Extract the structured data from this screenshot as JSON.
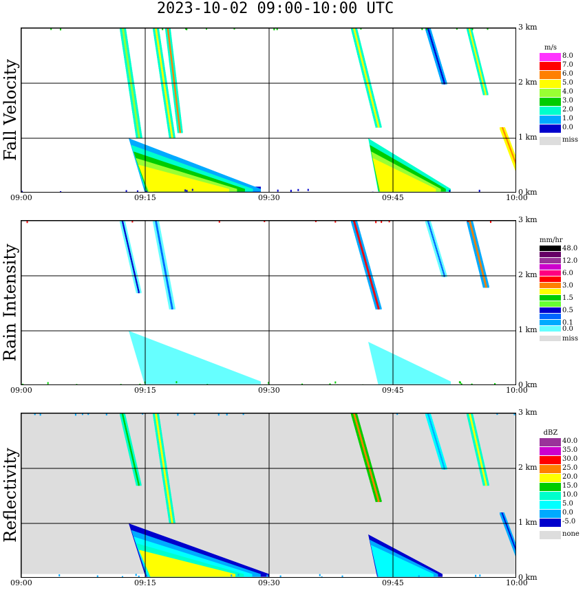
{
  "title": "2023-10-02   09:00-10:00 UTC",
  "chart_data": [
    {
      "type": "heatmap",
      "name": "Fall Velocity",
      "title": "Fall Velocity",
      "x_ticks": [
        "09:00",
        "09:15",
        "09:30",
        "09:45",
        "10:00"
      ],
      "xlim": [
        "09:00",
        "10:00"
      ],
      "y_ticks": [
        "0 km",
        "1 km",
        "2 km",
        "3 km"
      ],
      "ylim": [
        0,
        3.0
      ],
      "grid": true,
      "background": "#ffffff",
      "legend_unit": "m/s",
      "legend": [
        {
          "label": "8.0",
          "color": "#ff33ff"
        },
        {
          "label": "7.0",
          "color": "#ff0000"
        },
        {
          "label": "6.0",
          "color": "#ff8000"
        },
        {
          "label": "5.0",
          "color": "#ffff00"
        },
        {
          "label": "4.0",
          "color": "#99ff33"
        },
        {
          "label": "3.0",
          "color": "#00cc00"
        },
        {
          "label": "2.0",
          "color": "#00ffcc"
        },
        {
          "label": "1.0",
          "color": "#00aaff"
        },
        {
          "label": "0.0",
          "color": "#0000cc"
        },
        {
          "label": "miss",
          "color": "#dddddd"
        }
      ]
    },
    {
      "type": "heatmap",
      "name": "Rain Intensity",
      "title": "Rain Intensity",
      "x_ticks": [
        "09:00",
        "09:15",
        "09:30",
        "09:45",
        "10:00"
      ],
      "xlim": [
        "09:00",
        "10:00"
      ],
      "y_ticks": [
        "0 km",
        "1 km",
        "2 km",
        "3 km"
      ],
      "ylim": [
        0,
        3.0
      ],
      "grid": true,
      "background": "#ffffff",
      "legend_unit": "mm/hr",
      "legend": [
        {
          "label": "48.0",
          "color": "#000000"
        },
        {
          "label": "",
          "color": "#660066"
        },
        {
          "label": "12.0",
          "color": "#993399"
        },
        {
          "label": "",
          "color": "#cc00cc"
        },
        {
          "label": "6.0",
          "color": "#ff0080"
        },
        {
          "label": "",
          "color": "#ff0000"
        },
        {
          "label": "3.0",
          "color": "#ff8000"
        },
        {
          "label": "",
          "color": "#ffff00"
        },
        {
          "label": "1.5",
          "color": "#00cc00"
        },
        {
          "label": "",
          "color": "#66ff33"
        },
        {
          "label": "0.5",
          "color": "#0000cc"
        },
        {
          "label": "",
          "color": "#0066ff"
        },
        {
          "label": "0.1",
          "color": "#00aaff"
        },
        {
          "label": "0.0",
          "color": "#66ffff"
        },
        {
          "label": "miss",
          "color": "#dddddd"
        }
      ]
    },
    {
      "type": "heatmap",
      "name": "Reflectivity",
      "title": "Reflectivity",
      "x_ticks": [
        "09:00",
        "09:15",
        "09:30",
        "09:45",
        "10:00"
      ],
      "xlim": [
        "09:00",
        "10:00"
      ],
      "y_ticks": [
        "0 km",
        "1 km",
        "2 km",
        "3 km"
      ],
      "ylim": [
        0,
        3.0
      ],
      "grid": true,
      "background": "#dddddd",
      "legend_unit": "dBZ",
      "legend": [
        {
          "label": "40.0",
          "color": "#993399"
        },
        {
          "label": "35.0",
          "color": "#cc00cc"
        },
        {
          "label": "30.0",
          "color": "#ff0000"
        },
        {
          "label": "25.0",
          "color": "#ff8000"
        },
        {
          "label": "20.0",
          "color": "#ffff00"
        },
        {
          "label": "15.0",
          "color": "#00cc00"
        },
        {
          "label": "10.0",
          "color": "#00ffcc"
        },
        {
          "label": "5.0",
          "color": "#00ffff"
        },
        {
          "label": "0.0",
          "color": "#00aaff"
        },
        {
          "label": "-5.0",
          "color": "#0000cc"
        },
        {
          "label": "none",
          "color": "#dddddd"
        }
      ]
    }
  ]
}
